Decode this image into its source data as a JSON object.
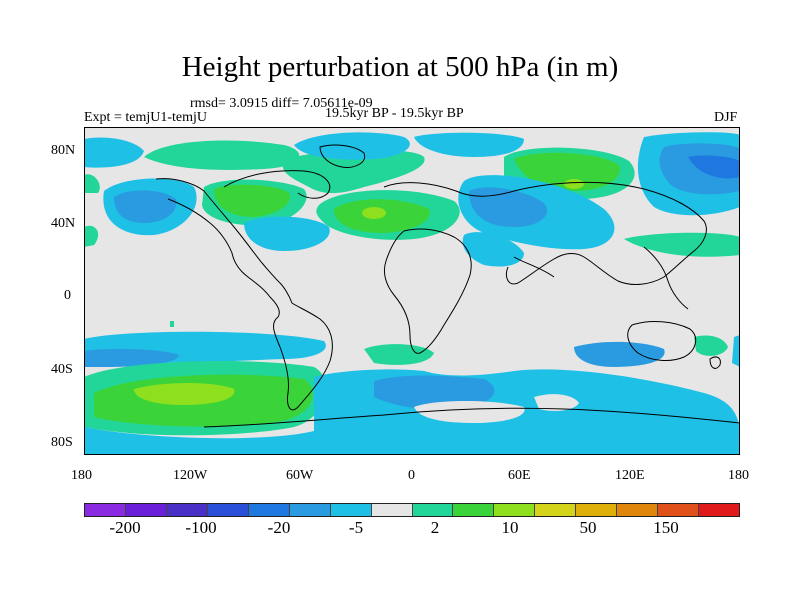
{
  "title": "Height perturbation at 500 hPa (in m)",
  "stats_line": "rmsd= 3.0915 diff= 7.05611e-09",
  "experiment": "Expt = temjU1-temjU",
  "period": "19.5kyr BP - 19.5kyr BP",
  "season": "DJF",
  "lat_labels": [
    "80N",
    "40N",
    "0",
    "40S",
    "80S"
  ],
  "lon_labels": [
    "180",
    "120W",
    "60W",
    "0",
    "60E",
    "120E",
    "180"
  ],
  "colorbar": {
    "colors": [
      "#8a2be2",
      "#6a1fd8",
      "#4b30c8",
      "#2a4fd8",
      "#1f78e0",
      "#2a9be0",
      "#1ec0e6",
      "#e6e6e6",
      "#22d69a",
      "#3ad43a",
      "#8ee01e",
      "#d4d41a",
      "#e0b00a",
      "#e0860a",
      "#e0501a",
      "#e01a1a"
    ],
    "labels": [
      "-200",
      "-100",
      "-20",
      "-5",
      "2",
      "10",
      "50",
      "150"
    ]
  }
}
